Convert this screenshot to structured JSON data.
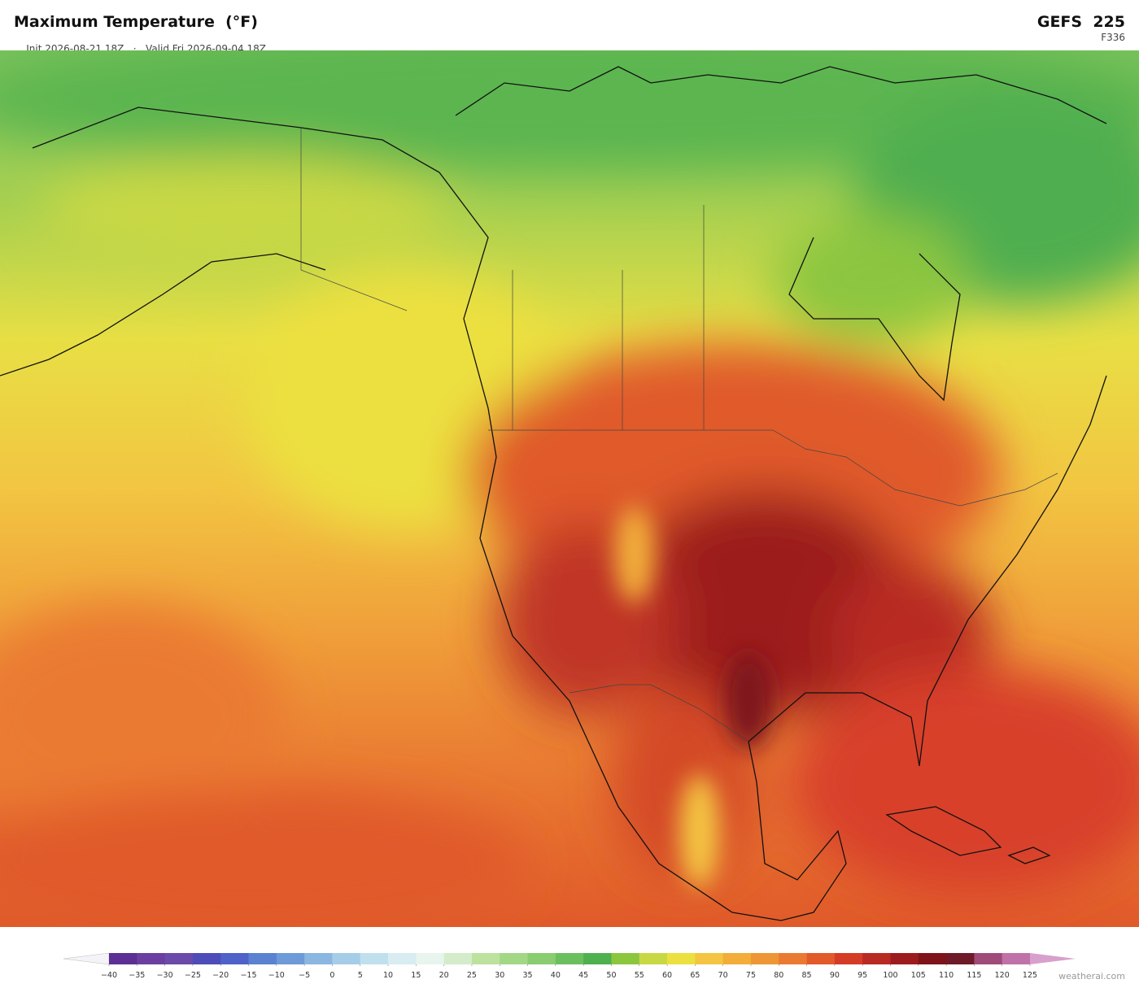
{
  "header": {
    "title": "Maximum Temperature  (°F)",
    "init": "Init 2026-08-21 18Z",
    "separator": "·",
    "valid": "Valid Fri 2026-09-04 18Z",
    "model": "GEFS  225",
    "forecast_hour": "F336"
  },
  "colorbar": {
    "ticks": [
      {
        "value": -40,
        "label": "−40"
      },
      {
        "value": -35,
        "label": "−35"
      },
      {
        "value": -30,
        "label": "−30"
      },
      {
        "value": -25,
        "label": "−25"
      },
      {
        "value": -20,
        "label": "−20"
      },
      {
        "value": -15,
        "label": "−15"
      },
      {
        "value": -10,
        "label": "−10"
      },
      {
        "value": -5,
        "label": "−5"
      },
      0,
      5,
      10,
      15,
      20,
      25,
      30,
      35,
      40,
      45,
      50,
      55,
      60,
      65,
      70,
      75,
      80,
      85,
      90,
      95,
      100,
      105,
      110,
      115,
      120,
      125
    ],
    "colors": [
      "#5b2f93",
      "#6a3fa0",
      "#6c4aa8",
      "#4e4cb8",
      "#4e62c8",
      "#5a82d0",
      "#6d9ad8",
      "#8ab6e0",
      "#a6cde8",
      "#c1e0ee",
      "#d8ecf2",
      "#e8f4ee",
      "#d4ecca",
      "#bce29e",
      "#a2d785",
      "#8acc70",
      "#6cbf5f",
      "#4fb04f",
      "#8cc63f",
      "#c8d845",
      "#ece040",
      "#f4c542",
      "#f2ad3a",
      "#ee9636",
      "#ea7a32",
      "#e25a2a",
      "#d43c26",
      "#b82a22",
      "#9c1c1e",
      "#7e141a",
      "#6e1a28",
      "#a04a7a",
      "#c072a8"
    ],
    "under_color": "#f4f4f8",
    "over_color": "#d8a0cc"
  },
  "credit": "weatherai.com"
}
